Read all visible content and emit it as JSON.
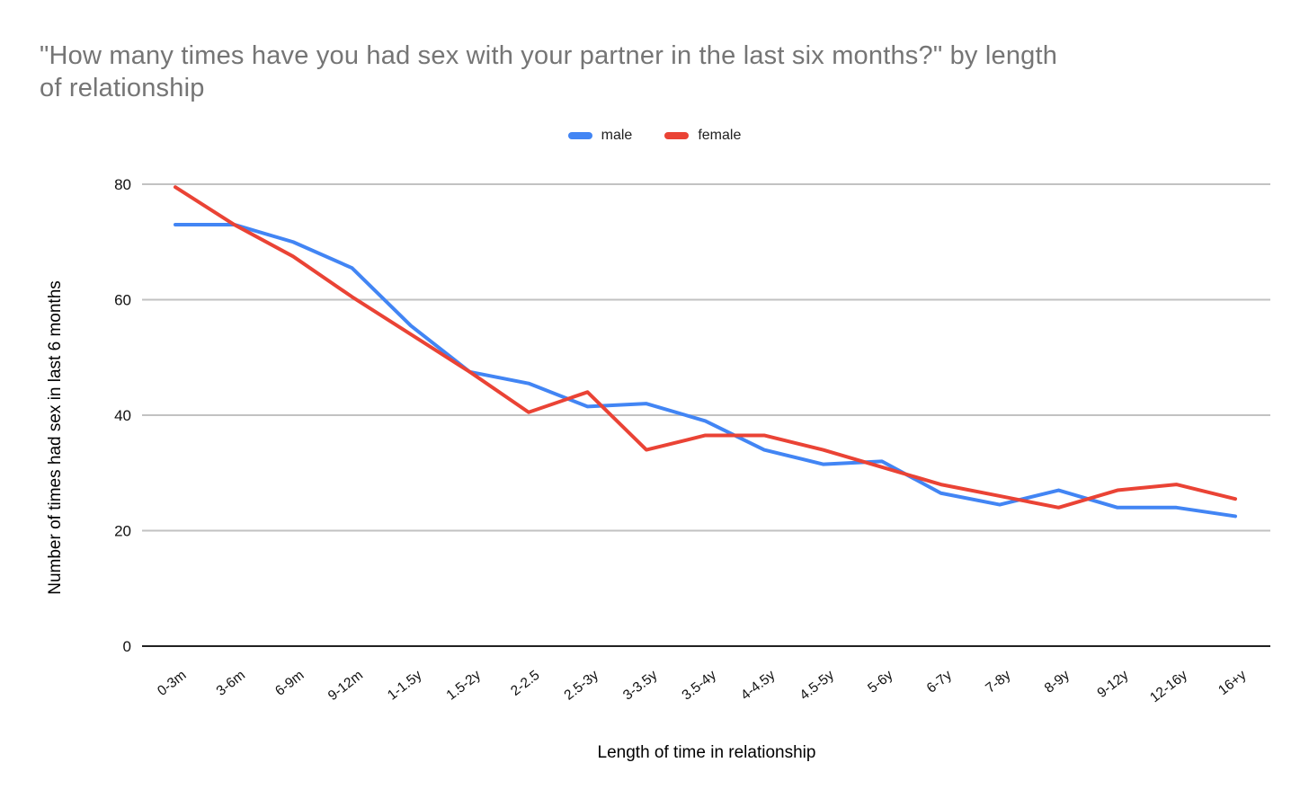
{
  "title": {
    "line1": "\"How many times have you had sex with your partner in the last six months?\" by length",
    "line2": "of relationship"
  },
  "colors": {
    "title_text": "#757575",
    "tick_text": "#111111",
    "gridline": "#c2c2c2",
    "axis_line": "#212121",
    "background": "#ffffff"
  },
  "chart_data": {
    "type": "line",
    "title": "\"How many times have you had sex with your partner in the last six months?\" by length of relationship",
    "xlabel": "Length of time in relationship",
    "ylabel": "Number of times had sex in last 6 months",
    "categories": [
      "0-3m",
      "3-6m",
      "6-9m",
      "9-12m",
      "1-1.5y",
      "1.5-2y",
      "2-2.5",
      "2.5-3y",
      "3-3.5y",
      "3.5-4y",
      "4-4.5y",
      "4.5-5y",
      "5-6y",
      "6-7y",
      "7-8y",
      "8-9y",
      "9-12y",
      "12-16y",
      "16+y"
    ],
    "series": [
      {
        "name": "male",
        "color": "#4285F4",
        "values": [
          73,
          73,
          70,
          65.5,
          55.5,
          47.5,
          45.5,
          41.5,
          42,
          39,
          34,
          31.5,
          32,
          26.5,
          24.5,
          27,
          24,
          24,
          22.5
        ]
      },
      {
        "name": "female",
        "color": "#EA4335",
        "values": [
          79.5,
          73,
          67.5,
          60.5,
          54,
          47.5,
          40.5,
          44,
          34,
          36.5,
          36.5,
          34,
          31,
          28,
          26,
          24,
          27,
          28,
          25.5
        ]
      }
    ],
    "ylim": [
      0,
      80
    ],
    "y_ticks": [
      0,
      20,
      40,
      60,
      80
    ],
    "grid": true,
    "legend_position": "top"
  }
}
